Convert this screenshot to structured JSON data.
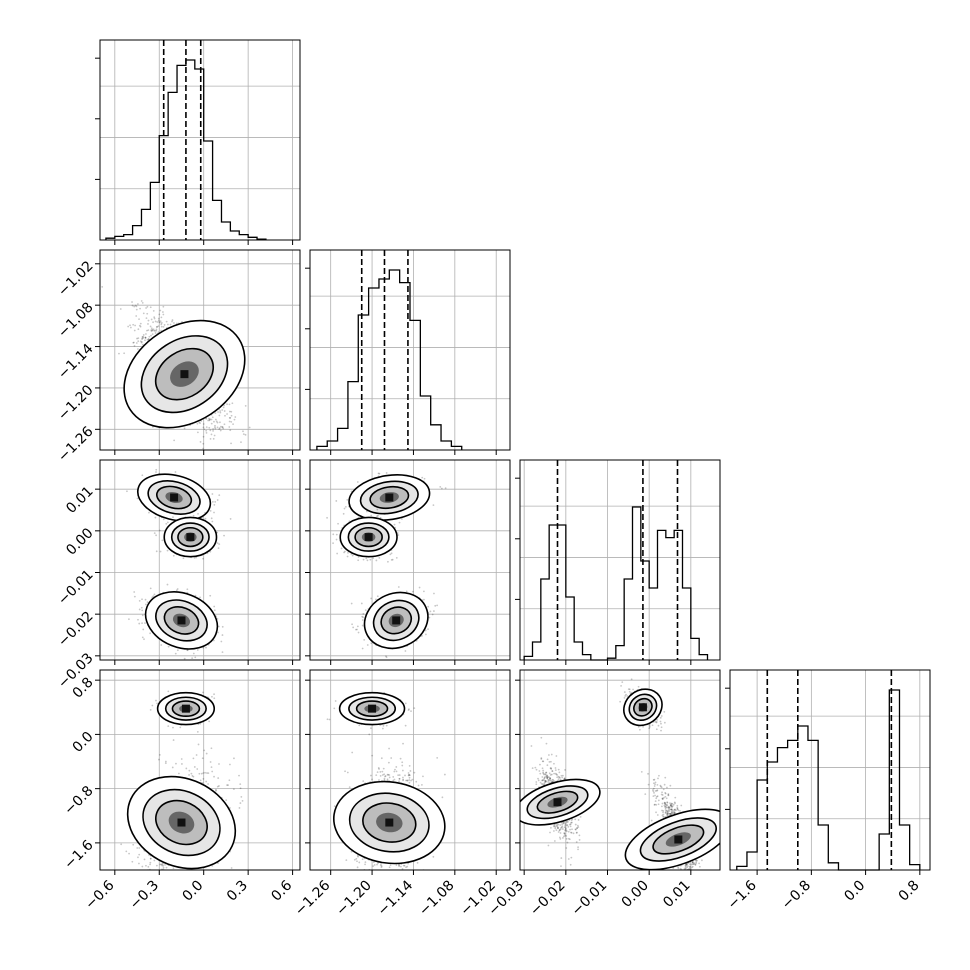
{
  "figure": {
    "type": "corner-plot",
    "grid": true,
    "quantile_lines": "dashed"
  },
  "chart_data": [
    {
      "type": "bar",
      "panel": "hist-0",
      "xlim": [
        -0.7,
        0.65
      ],
      "xticks": [
        "−0.6",
        "−0.3",
        "0.0",
        "0.3",
        "0.6"
      ],
      "xtick_values": [
        -0.6,
        -0.3,
        0.0,
        0.3,
        0.6
      ],
      "bin_edges": [
        -0.66,
        -0.6,
        -0.54,
        -0.48,
        -0.42,
        -0.36,
        -0.3,
        -0.24,
        -0.18,
        -0.12,
        -0.06,
        0.0,
        0.06,
        0.12,
        0.18,
        0.24,
        0.3,
        0.36,
        0.42
      ],
      "values": [
        0.01,
        0.02,
        0.03,
        0.08,
        0.17,
        0.32,
        0.58,
        0.82,
        0.97,
        1.0,
        0.95,
        0.55,
        0.22,
        0.1,
        0.05,
        0.03,
        0.015,
        0.005
      ],
      "quantiles": [
        -0.27,
        -0.12,
        -0.02
      ]
    },
    {
      "type": "bar",
      "panel": "hist-1",
      "xlim": [
        -1.29,
        -1.0
      ],
      "xticks": [
        "−1.26",
        "−1.20",
        "−1.14",
        "−1.08",
        "−1.02"
      ],
      "xtick_values": [
        -1.26,
        -1.2,
        -1.14,
        -1.08,
        -1.02
      ],
      "bin_edges": [
        -1.28,
        -1.265,
        -1.25,
        -1.235,
        -1.22,
        -1.205,
        -1.19,
        -1.175,
        -1.16,
        -1.145,
        -1.13,
        -1.115,
        -1.1,
        -1.085,
        -1.07
      ],
      "values": [
        0.02,
        0.05,
        0.12,
        0.38,
        0.75,
        0.9,
        0.95,
        1.0,
        0.93,
        0.72,
        0.3,
        0.14,
        0.05,
        0.02
      ],
      "quantiles": [
        -1.215,
        -1.182,
        -1.148
      ]
    },
    {
      "type": "bar",
      "panel": "hist-2",
      "xlim": [
        -0.031,
        0.017
      ],
      "xticks": [
        "−0.03",
        "−0.02",
        "−0.01",
        "0.00",
        "0.01"
      ],
      "xtick_values": [
        -0.03,
        -0.02,
        -0.01,
        0.0,
        0.01
      ],
      "bin_edges": [
        -0.03,
        -0.028,
        -0.026,
        -0.024,
        -0.022,
        -0.02,
        -0.018,
        -0.016,
        -0.014,
        -0.012,
        -0.01,
        -0.008,
        -0.006,
        -0.004,
        -0.002,
        0.0,
        0.002,
        0.004,
        0.006,
        0.008,
        0.01,
        0.012,
        0.014
      ],
      "values": [
        0.02,
        0.1,
        0.45,
        0.75,
        0.75,
        0.35,
        0.1,
        0.03,
        0.0,
        0.0,
        0.01,
        0.08,
        0.45,
        0.85,
        0.55,
        0.4,
        0.72,
        0.68,
        0.72,
        0.4,
        0.12,
        0.03
      ],
      "quantiles": [
        -0.022,
        -0.0015,
        0.0068
      ]
    },
    {
      "type": "bar",
      "panel": "hist-3",
      "xlim": [
        -2.0,
        0.95
      ],
      "xticks": [
        "−1.6",
        "−0.8",
        "0.0",
        "0.8"
      ],
      "xtick_values": [
        -1.6,
        -0.8,
        0.0,
        0.8
      ],
      "bin_edges": [
        -1.9,
        -1.75,
        -1.6,
        -1.45,
        -1.3,
        -1.15,
        -1.0,
        -0.85,
        -0.7,
        -0.55,
        -0.4,
        -0.25,
        -0.1,
        0.05,
        0.2,
        0.35,
        0.5,
        0.65,
        0.8
      ],
      "values": [
        0.02,
        0.1,
        0.5,
        0.6,
        0.68,
        0.72,
        0.8,
        0.72,
        0.25,
        0.04,
        0.0,
        0.0,
        0.0,
        0.0,
        0.2,
        1.0,
        0.25,
        0.03
      ],
      "quantiles": [
        -1.45,
        -1.0,
        0.38
      ]
    },
    {
      "type": "scatter",
      "panel": "joint-1-0",
      "xlim": [
        -0.7,
        0.65
      ],
      "ylim": [
        -1.29,
        -1.0
      ],
      "yticks": [
        "−1.02",
        "−1.08",
        "−1.14",
        "−1.20",
        "−1.26"
      ],
      "ytick_values": [
        -1.02,
        -1.08,
        -1.14,
        -1.2,
        -1.26
      ],
      "blobs": [
        {
          "cx": -0.13,
          "cy": -1.18,
          "sx": 0.11,
          "sy": 0.032,
          "rho": -0.7,
          "n": 1600
        }
      ]
    },
    {
      "type": "scatter",
      "panel": "joint-2-0",
      "xlim": [
        -0.7,
        0.65
      ],
      "ylim": [
        -0.031,
        0.017
      ],
      "yticks": [
        "0.01",
        "0.00",
        "−0.01",
        "−0.02",
        "−0.03"
      ],
      "ytick_values": [
        0.01,
        0.0,
        -0.01,
        -0.02,
        -0.03
      ],
      "blobs": [
        {
          "cx": -0.2,
          "cy": 0.008,
          "sx": 0.085,
          "sy": 0.0018,
          "rho": -0.3,
          "n": 500
        },
        {
          "cx": -0.09,
          "cy": -0.0015,
          "sx": 0.06,
          "sy": 0.0016,
          "rho": 0.0,
          "n": 650
        },
        {
          "cx": -0.15,
          "cy": -0.0215,
          "sx": 0.085,
          "sy": 0.0022,
          "rho": -0.3,
          "n": 800
        }
      ]
    },
    {
      "type": "scatter",
      "panel": "joint-2-1",
      "xlim": [
        -1.29,
        -1.0
      ],
      "ylim": [
        -0.031,
        0.017
      ],
      "blobs": [
        {
          "cx": -1.175,
          "cy": 0.008,
          "sx": 0.02,
          "sy": 0.0018,
          "rho": 0.2,
          "n": 500
        },
        {
          "cx": -1.205,
          "cy": -0.0015,
          "sx": 0.014,
          "sy": 0.0016,
          "rho": 0.0,
          "n": 650
        },
        {
          "cx": -1.165,
          "cy": -0.0215,
          "sx": 0.016,
          "sy": 0.0022,
          "rho": 0.2,
          "n": 800
        }
      ]
    },
    {
      "type": "scatter",
      "panel": "joint-3-0",
      "xlim": [
        -0.7,
        0.65
      ],
      "ylim": [
        -2.0,
        0.95
      ],
      "yticks": [
        "0.8",
        "0.0",
        "−0.8",
        "−1.6"
      ],
      "ytick_values": [
        0.8,
        0.0,
        -0.8,
        -1.6
      ],
      "blobs": [
        {
          "cx": -0.12,
          "cy": 0.38,
          "sx": 0.065,
          "sy": 0.08,
          "rho": 0.0,
          "n": 500
        },
        {
          "cx": -0.15,
          "cy": -1.3,
          "sx": 0.1,
          "sy": 0.28,
          "rho": 0.3,
          "n": 1400
        }
      ]
    },
    {
      "type": "scatter",
      "panel": "joint-3-1",
      "xlim": [
        -1.29,
        -1.0
      ],
      "ylim": [
        -2.0,
        0.95
      ],
      "blobs": [
        {
          "cx": -1.2,
          "cy": 0.38,
          "sx": 0.016,
          "sy": 0.08,
          "rho": 0.0,
          "n": 500
        },
        {
          "cx": -1.175,
          "cy": -1.3,
          "sx": 0.02,
          "sy": 0.28,
          "rho": 0.1,
          "n": 1400
        }
      ]
    },
    {
      "type": "scatter",
      "panel": "joint-3-2",
      "xlim": [
        -0.031,
        0.017
      ],
      "ylim": [
        -2.0,
        0.95
      ],
      "blobs": [
        {
          "cx": -0.0015,
          "cy": 0.4,
          "sx": 0.0014,
          "sy": 0.1,
          "rho": -0.4,
          "n": 500
        },
        {
          "cx": -0.022,
          "cy": -1.0,
          "sx": 0.0016,
          "sy": 0.22,
          "rho": -0.6,
          "n": 650
        },
        {
          "cx": 0.007,
          "cy": -1.55,
          "sx": 0.002,
          "sy": 0.28,
          "rho": -0.8,
          "n": 900
        }
      ]
    }
  ]
}
